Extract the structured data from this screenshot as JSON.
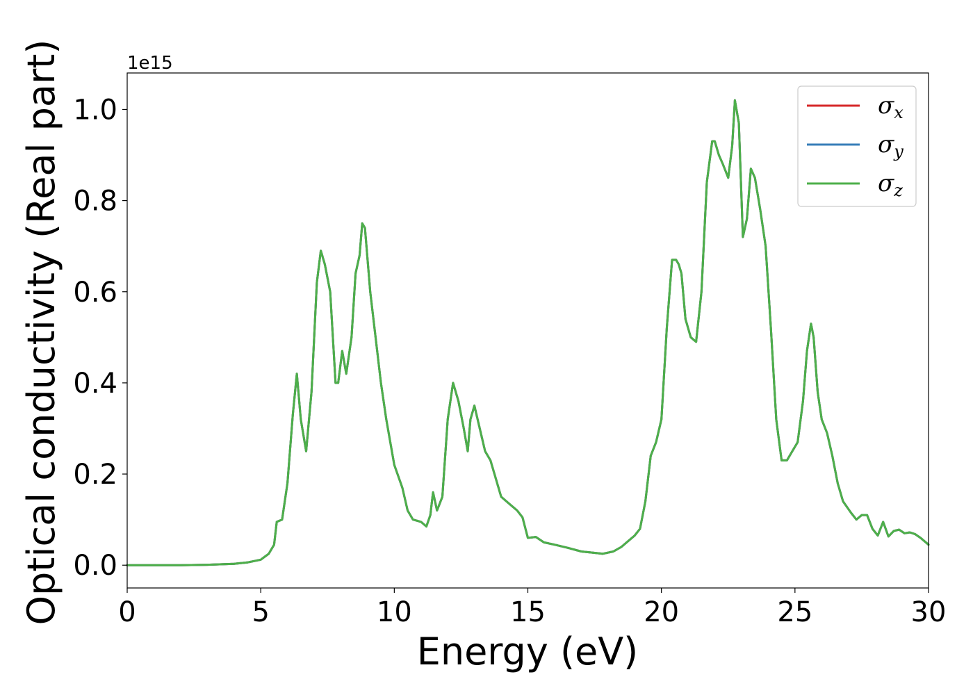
{
  "chart_data": {
    "type": "line",
    "xlabel": "Energy (eV)",
    "ylabel": "Optical conductivity (Real part)",
    "y_offset_label": "1e15",
    "xlim": [
      0,
      30
    ],
    "ylim": [
      -0.05,
      1.08
    ],
    "x_ticks": [
      0,
      5,
      10,
      15,
      20,
      25,
      30
    ],
    "x_tick_labels": [
      "0",
      "5",
      "10",
      "15",
      "20",
      "25",
      "30"
    ],
    "y_ticks": [
      0.0,
      0.2,
      0.4,
      0.6,
      0.8,
      1.0
    ],
    "y_tick_labels": [
      "0.0",
      "0.2",
      "0.4",
      "0.6",
      "0.8",
      "1.0"
    ],
    "grid": false,
    "legend_position": "top-right",
    "x": [
      0,
      1,
      2,
      3,
      4,
      4.5,
      5,
      5.3,
      5.5,
      5.6,
      5.8,
      6.0,
      6.2,
      6.35,
      6.5,
      6.7,
      6.9,
      7.1,
      7.25,
      7.4,
      7.6,
      7.8,
      7.9,
      8.05,
      8.2,
      8.4,
      8.55,
      8.7,
      8.8,
      8.9,
      9.1,
      9.3,
      9.5,
      9.7,
      10.0,
      10.3,
      10.5,
      10.7,
      11.0,
      11.2,
      11.35,
      11.45,
      11.6,
      11.8,
      12.0,
      12.2,
      12.4,
      12.6,
      12.75,
      12.85,
      13.0,
      13.2,
      13.4,
      13.6,
      13.8,
      14.0,
      14.3,
      14.6,
      14.8,
      15.0,
      15.3,
      15.6,
      16.0,
      16.5,
      17.0,
      17.5,
      17.8,
      18.2,
      18.5,
      18.8,
      19.0,
      19.2,
      19.4,
      19.6,
      19.8,
      20.0,
      20.2,
      20.4,
      20.55,
      20.65,
      20.75,
      20.9,
      21.1,
      21.3,
      21.5,
      21.7,
      21.9,
      22.0,
      22.15,
      22.3,
      22.5,
      22.65,
      22.75,
      22.9,
      23.05,
      23.2,
      23.35,
      23.5,
      23.7,
      23.9,
      24.1,
      24.3,
      24.5,
      24.7,
      24.9,
      25.1,
      25.3,
      25.45,
      25.6,
      25.7,
      25.85,
      26.0,
      26.2,
      26.4,
      26.6,
      26.8,
      27.1,
      27.3,
      27.5,
      27.7,
      27.9,
      28.1,
      28.3,
      28.5,
      28.7,
      28.9,
      29.1,
      29.3,
      29.5,
      29.7,
      30.0
    ],
    "series": [
      {
        "name": "σx",
        "color": "#d62728",
        "values": [
          0,
          0,
          0,
          0.001,
          0.003,
          0.006,
          0.012,
          0.025,
          0.045,
          0.095,
          0.1,
          0.18,
          0.33,
          0.42,
          0.32,
          0.25,
          0.38,
          0.62,
          0.69,
          0.66,
          0.6,
          0.4,
          0.4,
          0.47,
          0.42,
          0.5,
          0.64,
          0.68,
          0.75,
          0.74,
          0.6,
          0.5,
          0.4,
          0.32,
          0.22,
          0.17,
          0.12,
          0.1,
          0.095,
          0.085,
          0.11,
          0.16,
          0.12,
          0.15,
          0.32,
          0.4,
          0.36,
          0.3,
          0.25,
          0.32,
          0.35,
          0.3,
          0.25,
          0.23,
          0.19,
          0.15,
          0.135,
          0.12,
          0.105,
          0.06,
          0.062,
          0.05,
          0.045,
          0.038,
          0.03,
          0.027,
          0.025,
          0.03,
          0.04,
          0.055,
          0.065,
          0.08,
          0.14,
          0.24,
          0.27,
          0.32,
          0.52,
          0.67,
          0.67,
          0.66,
          0.64,
          0.54,
          0.5,
          0.49,
          0.6,
          0.84,
          0.93,
          0.93,
          0.9,
          0.88,
          0.85,
          0.92,
          1.02,
          0.97,
          0.72,
          0.76,
          0.87,
          0.85,
          0.78,
          0.7,
          0.52,
          0.32,
          0.23,
          0.23,
          0.25,
          0.27,
          0.36,
          0.47,
          0.53,
          0.5,
          0.38,
          0.32,
          0.29,
          0.24,
          0.18,
          0.14,
          0.115,
          0.1,
          0.11,
          0.11,
          0.08,
          0.065,
          0.095,
          0.063,
          0.075,
          0.078,
          0.07,
          0.072,
          0.068,
          0.06,
          0.045
        ]
      },
      {
        "name": "σy",
        "color": "#377eb8",
        "values": [
          0,
          0,
          0,
          0.001,
          0.003,
          0.006,
          0.012,
          0.025,
          0.045,
          0.095,
          0.1,
          0.18,
          0.33,
          0.42,
          0.32,
          0.25,
          0.38,
          0.62,
          0.69,
          0.66,
          0.6,
          0.4,
          0.4,
          0.47,
          0.42,
          0.5,
          0.64,
          0.68,
          0.75,
          0.74,
          0.6,
          0.5,
          0.4,
          0.32,
          0.22,
          0.17,
          0.12,
          0.1,
          0.095,
          0.085,
          0.11,
          0.16,
          0.12,
          0.15,
          0.32,
          0.4,
          0.36,
          0.3,
          0.25,
          0.32,
          0.35,
          0.3,
          0.25,
          0.23,
          0.19,
          0.15,
          0.135,
          0.12,
          0.105,
          0.06,
          0.062,
          0.05,
          0.045,
          0.038,
          0.03,
          0.027,
          0.025,
          0.03,
          0.04,
          0.055,
          0.065,
          0.08,
          0.14,
          0.24,
          0.27,
          0.32,
          0.52,
          0.67,
          0.67,
          0.66,
          0.64,
          0.54,
          0.5,
          0.49,
          0.6,
          0.84,
          0.93,
          0.93,
          0.9,
          0.88,
          0.85,
          0.92,
          1.02,
          0.97,
          0.72,
          0.76,
          0.87,
          0.85,
          0.78,
          0.7,
          0.52,
          0.32,
          0.23,
          0.23,
          0.25,
          0.27,
          0.36,
          0.47,
          0.53,
          0.5,
          0.38,
          0.32,
          0.29,
          0.24,
          0.18,
          0.14,
          0.115,
          0.1,
          0.11,
          0.11,
          0.08,
          0.065,
          0.095,
          0.063,
          0.075,
          0.078,
          0.07,
          0.072,
          0.068,
          0.06,
          0.045
        ]
      },
      {
        "name": "σz",
        "color": "#4daf4a",
        "values": [
          0,
          0,
          0,
          0.001,
          0.003,
          0.006,
          0.012,
          0.025,
          0.045,
          0.095,
          0.1,
          0.18,
          0.33,
          0.42,
          0.32,
          0.25,
          0.38,
          0.62,
          0.69,
          0.66,
          0.6,
          0.4,
          0.4,
          0.47,
          0.42,
          0.5,
          0.64,
          0.68,
          0.75,
          0.74,
          0.6,
          0.5,
          0.4,
          0.32,
          0.22,
          0.17,
          0.12,
          0.1,
          0.095,
          0.085,
          0.11,
          0.16,
          0.12,
          0.15,
          0.32,
          0.4,
          0.36,
          0.3,
          0.25,
          0.32,
          0.35,
          0.3,
          0.25,
          0.23,
          0.19,
          0.15,
          0.135,
          0.12,
          0.105,
          0.06,
          0.062,
          0.05,
          0.045,
          0.038,
          0.03,
          0.027,
          0.025,
          0.03,
          0.04,
          0.055,
          0.065,
          0.08,
          0.14,
          0.24,
          0.27,
          0.32,
          0.52,
          0.67,
          0.67,
          0.66,
          0.64,
          0.54,
          0.5,
          0.49,
          0.6,
          0.84,
          0.93,
          0.93,
          0.9,
          0.88,
          0.85,
          0.92,
          1.02,
          0.97,
          0.72,
          0.76,
          0.87,
          0.85,
          0.78,
          0.7,
          0.52,
          0.32,
          0.23,
          0.23,
          0.25,
          0.27,
          0.36,
          0.47,
          0.53,
          0.5,
          0.38,
          0.32,
          0.29,
          0.24,
          0.18,
          0.14,
          0.115,
          0.1,
          0.11,
          0.11,
          0.08,
          0.065,
          0.095,
          0.063,
          0.075,
          0.078,
          0.07,
          0.072,
          0.068,
          0.06,
          0.045
        ]
      }
    ],
    "legend": [
      {
        "symbol": "σ",
        "sub": "x",
        "color": "#d62728"
      },
      {
        "symbol": "σ",
        "sub": "y",
        "color": "#377eb8"
      },
      {
        "symbol": "σ",
        "sub": "z",
        "color": "#4daf4a"
      }
    ]
  }
}
